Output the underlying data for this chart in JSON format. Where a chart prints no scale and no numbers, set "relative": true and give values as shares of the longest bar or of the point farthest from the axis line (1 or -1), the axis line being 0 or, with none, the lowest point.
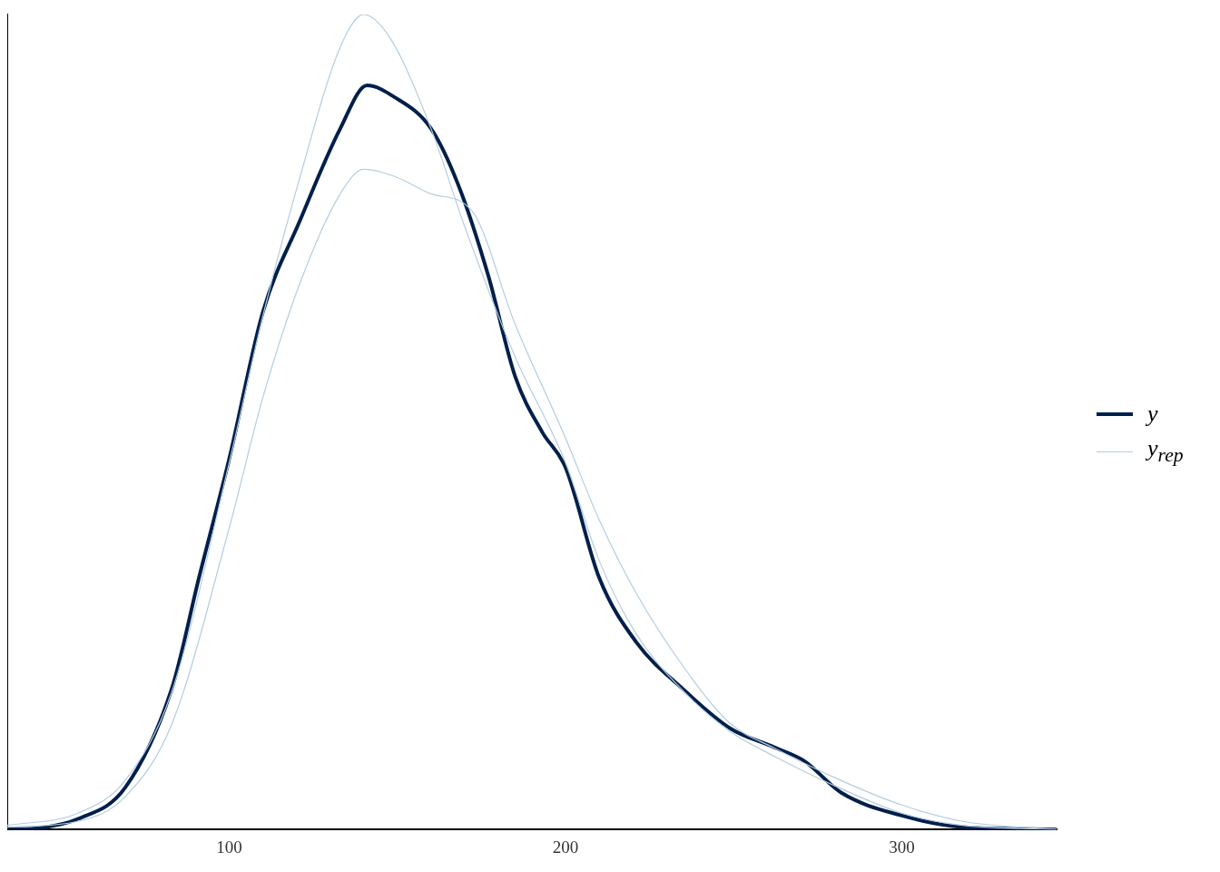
{
  "chart_data": {
    "type": "line",
    "relative": true,
    "xlim": [
      34,
      346
    ],
    "xticks": [
      100,
      200,
      300
    ],
    "grid": false,
    "legend": "right",
    "marker": "none",
    "line_style": "solid",
    "series": [
      {
        "name": "y",
        "color": "#011f4b",
        "x": [
          34,
          44,
          55,
          69,
          83,
          91,
          100,
          110,
          121,
          133,
          141,
          149,
          160,
          168,
          177,
          185,
          193,
          200,
          210,
          221,
          235,
          249,
          262,
          271,
          282,
          300,
          318,
          346
        ],
        "values": [
          0,
          0.002,
          0.013,
          0.051,
          0.174,
          0.309,
          0.455,
          0.635,
          0.747,
          0.86,
          0.913,
          0.899,
          0.86,
          0.792,
          0.68,
          0.556,
          0.488,
          0.444,
          0.309,
          0.23,
          0.172,
          0.124,
          0.101,
          0.084,
          0.045,
          0.017,
          0.003,
          0
        ]
      },
      {
        "name": "y$_{rep}$",
        "color": "#b3cde0",
        "x": [
          34,
          55,
          69,
          83,
          100,
          110,
          121,
          133,
          140,
          148,
          160,
          170,
          185,
          200,
          210,
          221,
          235,
          249,
          262,
          282,
          300,
          318,
          346
        ],
        "values": [
          0.005,
          0.02,
          0.06,
          0.17,
          0.45,
          0.63,
          0.8,
          0.96,
          1,
          0.97,
          0.86,
          0.74,
          0.58,
          0.45,
          0.33,
          0.24,
          0.17,
          0.12,
          0.09,
          0.05,
          0.02,
          0.005,
          0
        ]
      },
      {
        "color": "#b3cde0",
        "x": [
          34,
          55,
          69,
          83,
          100,
          110,
          121,
          133,
          140,
          150,
          160,
          172,
          185,
          200,
          210,
          221,
          235,
          249,
          262,
          282,
          300,
          318,
          346
        ],
        "values": [
          0.003,
          0.01,
          0.04,
          0.13,
          0.37,
          0.53,
          0.67,
          0.78,
          0.81,
          0.8,
          0.78,
          0.76,
          0.62,
          0.48,
          0.38,
          0.29,
          0.2,
          0.13,
          0.1,
          0.06,
          0.03,
          0.01,
          0
        ]
      }
    ]
  }
}
